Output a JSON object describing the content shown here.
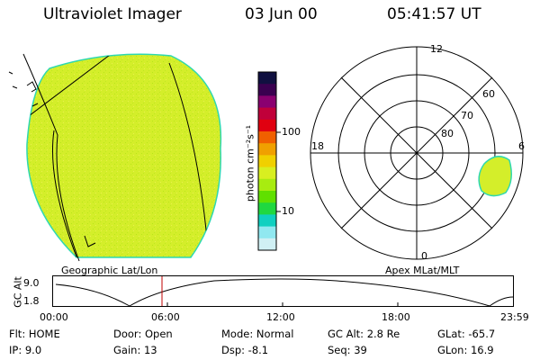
{
  "header": {
    "instrument": "Ultraviolet Imager",
    "date": "03 Jun 00",
    "time": "05:41:57 UT"
  },
  "colorbar": {
    "label": "photon cm⁻²s⁻¹",
    "tick_labels": [
      "100",
      "10"
    ],
    "colors": [
      "#101040",
      "#3a0050",
      "#8a0070",
      "#c0003a",
      "#e00010",
      "#f06000",
      "#f0a000",
      "#f0d000",
      "#d8ef20",
      "#a8ec10",
      "#60e000",
      "#20d840",
      "#10d0c0",
      "#90e8f0",
      "#d0f0f4"
    ]
  },
  "panels": {
    "left_caption": "Geographic Lat/Lon",
    "right_caption": "Apex MLat/MLT"
  },
  "polar_plot": {
    "mlt_labels": {
      "top": "12",
      "left": "18",
      "right": "6",
      "bottom": "0"
    },
    "lat_labels": [
      "60",
      "70",
      "80"
    ]
  },
  "timeline": {
    "ylabel": "GC Alt",
    "y_ticks": [
      "9.0",
      "1.8"
    ],
    "x_ticks": [
      "00:00",
      "06:00",
      "12:00",
      "18:00",
      "23:59"
    ],
    "marker_color": "#c00000"
  },
  "info": {
    "flt": "Flt: HOME",
    "ip": "IP: 9.0",
    "door": "Door: Open",
    "gain": "Gain: 13",
    "mode": "Mode: Normal",
    "dsp": "Dsp:  -8.1",
    "gcalt": "GC Alt: 2.8 Re",
    "seq": "Seq: 39",
    "glat": "GLat: -65.7",
    "glon": "GLon: 16.9"
  },
  "colors": {
    "image_fill": "#d4ee2a",
    "image_edge": "#2ed8b0",
    "grid_line": "#000000"
  }
}
